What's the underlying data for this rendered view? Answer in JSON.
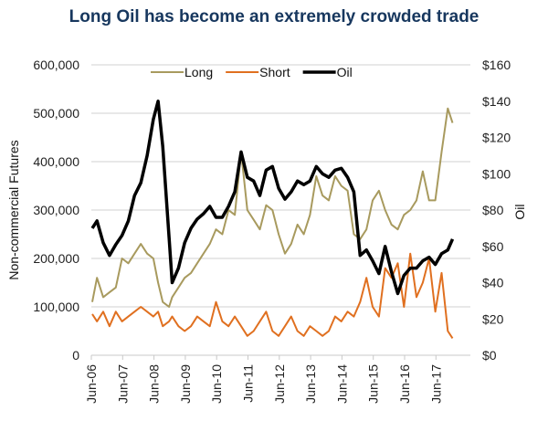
{
  "chart_data": {
    "type": "line",
    "title": "Long Oil has become an extremely crowded trade",
    "xlabel": "",
    "ylabel": "Non-commercial Futures",
    "y2label": "Oil",
    "ylim": [
      0,
      600000
    ],
    "y2lim": [
      0,
      160
    ],
    "yticks": [
      "0",
      "100,000",
      "200,000",
      "300,000",
      "400,000",
      "500,000",
      "600,000"
    ],
    "y2ticks": [
      "$0",
      "$20",
      "$40",
      "$60",
      "$80",
      "$100",
      "$120",
      "$140",
      "$160"
    ],
    "x_ticks": [
      "Jun-06",
      "Jun-07",
      "Jun-08",
      "Jun-09",
      "Jun-10",
      "Jun-11",
      "Jun-12",
      "Jun-13",
      "Jun-14",
      "Jun-15",
      "Jun-16",
      "Jun-17"
    ],
    "x_start_year": 2006.42,
    "grid": true,
    "legend_position": "top-center",
    "x": [
      2006.45,
      2006.6,
      2006.8,
      2007.0,
      2007.2,
      2007.4,
      2007.6,
      2007.8,
      2008.0,
      2008.2,
      2008.4,
      2008.55,
      2008.7,
      2008.9,
      2009.0,
      2009.2,
      2009.4,
      2009.6,
      2009.8,
      2010.0,
      2010.2,
      2010.4,
      2010.6,
      2010.8,
      2011.0,
      2011.2,
      2011.4,
      2011.6,
      2011.8,
      2012.0,
      2012.2,
      2012.4,
      2012.6,
      2012.8,
      2013.0,
      2013.2,
      2013.4,
      2013.6,
      2013.8,
      2014.0,
      2014.2,
      2014.4,
      2014.6,
      2014.8,
      2015.0,
      2015.2,
      2015.4,
      2015.6,
      2015.8,
      2016.0,
      2016.2,
      2016.4,
      2016.6,
      2016.8,
      2017.0,
      2017.2,
      2017.4,
      2017.6,
      2017.8,
      2017.95
    ],
    "series": [
      {
        "name": "Long",
        "color": "#a89a5e",
        "axis": "left",
        "values": [
          110000,
          160000,
          120000,
          130000,
          140000,
          200000,
          190000,
          210000,
          230000,
          210000,
          200000,
          150000,
          110000,
          100000,
          120000,
          140000,
          160000,
          170000,
          190000,
          210000,
          230000,
          260000,
          250000,
          300000,
          290000,
          420000,
          300000,
          280000,
          260000,
          310000,
          300000,
          250000,
          210000,
          230000,
          270000,
          250000,
          290000,
          370000,
          330000,
          320000,
          370000,
          350000,
          340000,
          250000,
          240000,
          260000,
          320000,
          340000,
          300000,
          270000,
          260000,
          290000,
          300000,
          320000,
          380000,
          320000,
          320000,
          420000,
          510000,
          480000
        ]
      },
      {
        "name": "Short",
        "color": "#e07020",
        "axis": "left",
        "values": [
          85000,
          70000,
          90000,
          60000,
          90000,
          70000,
          80000,
          90000,
          100000,
          90000,
          80000,
          90000,
          60000,
          70000,
          80000,
          60000,
          50000,
          60000,
          80000,
          70000,
          60000,
          110000,
          70000,
          60000,
          80000,
          60000,
          40000,
          50000,
          70000,
          90000,
          50000,
          40000,
          60000,
          80000,
          50000,
          40000,
          60000,
          50000,
          40000,
          50000,
          80000,
          70000,
          90000,
          80000,
          110000,
          160000,
          100000,
          80000,
          180000,
          160000,
          190000,
          100000,
          210000,
          120000,
          150000,
          200000,
          90000,
          170000,
          50000,
          35000
        ]
      },
      {
        "name": "Oil",
        "color": "#000000",
        "axis": "right",
        "values": [
          70,
          74,
          62,
          55,
          61,
          66,
          74,
          88,
          95,
          110,
          130,
          140,
          115,
          65,
          40,
          48,
          62,
          70,
          75,
          78,
          82,
          76,
          76,
          82,
          90,
          112,
          98,
          96,
          88,
          102,
          104,
          92,
          86,
          90,
          96,
          94,
          96,
          104,
          100,
          98,
          102,
          103,
          98,
          90,
          55,
          58,
          52,
          45,
          60,
          46,
          34,
          44,
          48,
          48,
          52,
          54,
          50,
          56,
          58,
          64
        ]
      }
    ]
  }
}
